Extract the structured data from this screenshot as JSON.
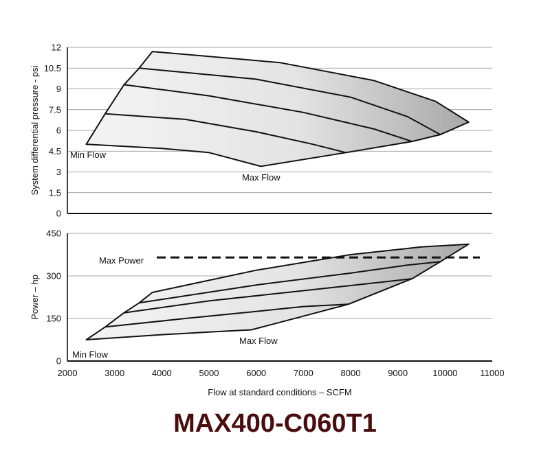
{
  "model_title": "MAX400-C060T1",
  "colors": {
    "title": "#4a0d0d",
    "fill_light": "#f4f4f4",
    "fill_dark": "#a8a8a8",
    "line": "#111111",
    "grid": "#888888"
  },
  "chart_data": [
    {
      "type": "area",
      "ylabel": "System differential pressure - psi",
      "xlim": [
        2000,
        11000
      ],
      "ylim": [
        0,
        12
      ],
      "y_ticks": [
        "0",
        "1.5",
        "3",
        "4.5",
        "6",
        "7.5",
        "9",
        "10.5",
        "12"
      ],
      "grid": true,
      "envelope": {
        "min_flow_edge": [
          [
            2400,
            5
          ],
          [
            2800,
            7.2
          ],
          [
            3200,
            9.3
          ],
          [
            3520,
            10.5
          ],
          [
            3800,
            11.7
          ]
        ],
        "max_flow_edge": [
          [
            6100,
            3.4
          ],
          [
            7900,
            4.4
          ],
          [
            9300,
            5.2
          ],
          [
            9900,
            5.7
          ],
          [
            10500,
            6.6
          ]
        ],
        "top_edge": [
          [
            3800,
            11.7
          ],
          [
            6500,
            10.9
          ],
          [
            8500,
            9.6
          ],
          [
            9800,
            8.1
          ],
          [
            10500,
            6.6
          ]
        ],
        "bottom_edge": [
          [
            2400,
            5
          ],
          [
            4000,
            4.7
          ],
          [
            5000,
            4.4
          ],
          [
            6100,
            3.4
          ]
        ]
      },
      "curves": [
        [
          [
            2800,
            7.2
          ],
          [
            4500,
            6.8
          ],
          [
            6000,
            5.9
          ],
          [
            7200,
            5.0
          ],
          [
            7900,
            4.4
          ]
        ],
        [
          [
            3200,
            9.3
          ],
          [
            5000,
            8.5
          ],
          [
            7000,
            7.3
          ],
          [
            8500,
            6.1
          ],
          [
            9300,
            5.2
          ]
        ],
        [
          [
            3520,
            10.5
          ],
          [
            6000,
            9.7
          ],
          [
            8000,
            8.4
          ],
          [
            9200,
            7.0
          ],
          [
            9900,
            5.7
          ]
        ]
      ],
      "annotations": {
        "min_flow": "Min Flow",
        "max_flow": "Max Flow"
      }
    },
    {
      "type": "area",
      "xlabel": "Flow at standard conditions – SCFM",
      "ylabel": "Power – hp",
      "xlim": [
        2000,
        11000
      ],
      "ylim": [
        0,
        450
      ],
      "x_ticks": [
        "2000",
        "3000",
        "4000",
        "5000",
        "6000",
        "7000",
        "8000",
        "9000",
        "10000",
        "11000"
      ],
      "y_ticks": [
        "0",
        "150",
        "300",
        "450"
      ],
      "grid": true,
      "max_power": 365,
      "max_power_label": "Max Power",
      "envelope": {
        "min_flow_edge": [
          [
            2400,
            75
          ],
          [
            2800,
            120
          ],
          [
            3200,
            170
          ],
          [
            3520,
            205
          ],
          [
            3800,
            242
          ]
        ],
        "max_flow_edge": [
          [
            5900,
            110
          ],
          [
            7950,
            200
          ],
          [
            9300,
            290
          ],
          [
            9900,
            350
          ],
          [
            10500,
            412
          ]
        ],
        "top_edge": [
          [
            3800,
            242
          ],
          [
            6000,
            320
          ],
          [
            8000,
            375
          ],
          [
            9500,
            402
          ],
          [
            10500,
            412
          ]
        ],
        "bottom_edge": [
          [
            2400,
            75
          ],
          [
            4000,
            93
          ],
          [
            5000,
            102
          ],
          [
            5900,
            110
          ]
        ]
      },
      "curves": [
        [
          [
            2800,
            120
          ],
          [
            4500,
            150
          ],
          [
            6000,
            175
          ],
          [
            7000,
            192
          ],
          [
            7950,
            200
          ]
        ],
        [
          [
            3200,
            170
          ],
          [
            5000,
            212
          ],
          [
            7000,
            248
          ],
          [
            8500,
            275
          ],
          [
            9300,
            290
          ]
        ],
        [
          [
            3520,
            205
          ],
          [
            6000,
            268
          ],
          [
            8000,
            310
          ],
          [
            9200,
            338
          ],
          [
            9900,
            350
          ]
        ]
      ],
      "annotations": {
        "min_flow": "Min Flow",
        "max_flow": "Max Flow"
      }
    }
  ]
}
